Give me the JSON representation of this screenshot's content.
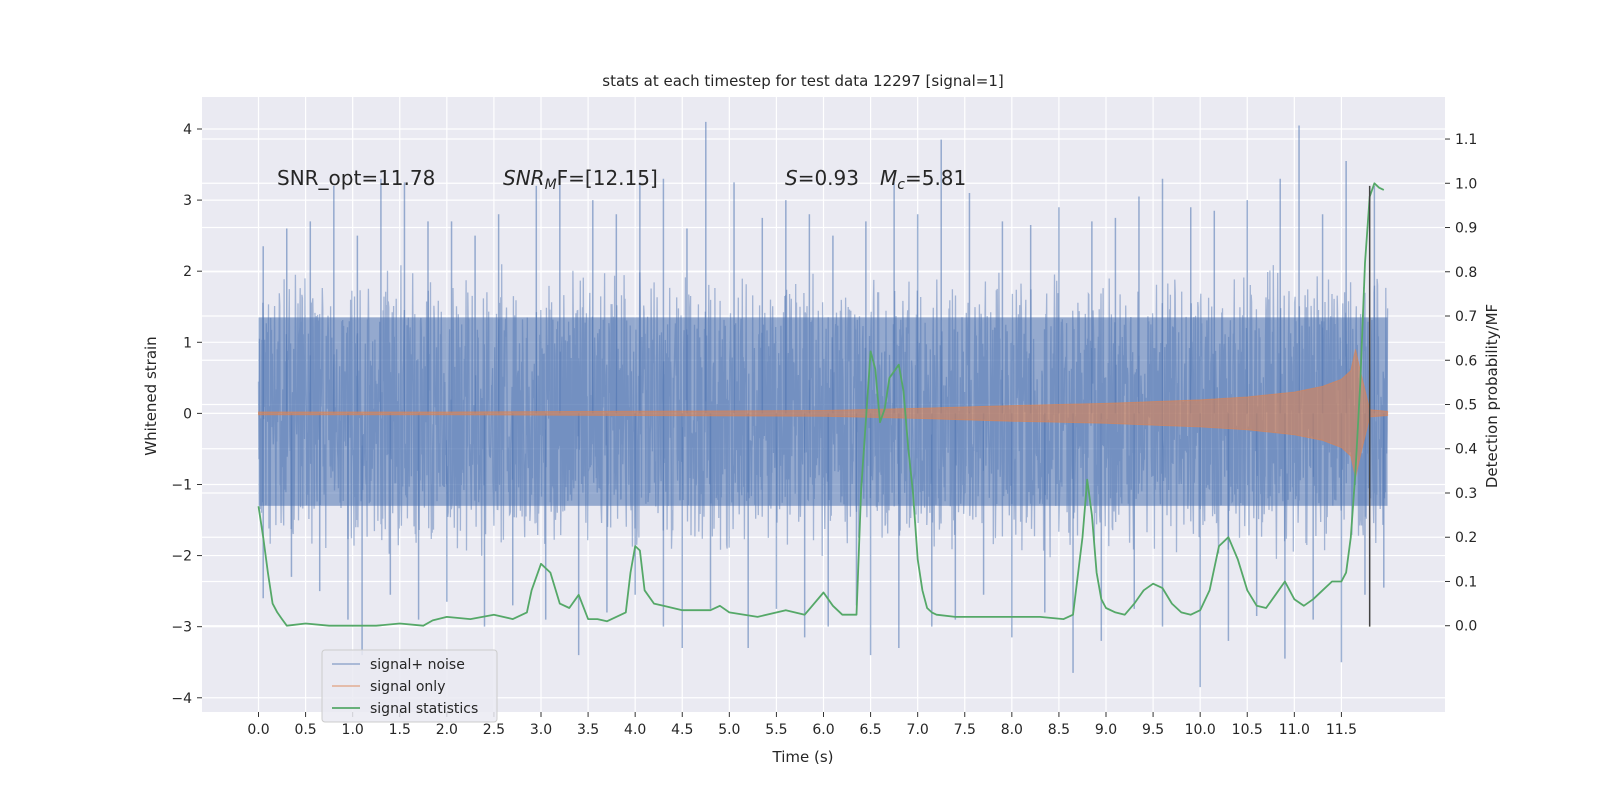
{
  "chart_data": {
    "type": "line",
    "title": "stats at each timestep for test data 12297 [signal=1]",
    "xlabel": "Time (s)",
    "ylabel_left": "Whitened strain",
    "ylabel_right": "Detection probability/MF",
    "xlim": [
      -0.6,
      12.6
    ],
    "ylim_left": [
      -4.2,
      4.45
    ],
    "ylim_right": [
      -0.195,
      1.195
    ],
    "x_ticks": [
      "0.0",
      "0.5",
      "1.0",
      "1.5",
      "2.0",
      "2.5",
      "3.0",
      "3.5",
      "4.0",
      "4.5",
      "5.0",
      "5.5",
      "6.0",
      "6.5",
      "7.0",
      "7.5",
      "8.0",
      "8.5",
      "9.0",
      "9.5",
      "10.0",
      "10.5",
      "11.0",
      "11.5"
    ],
    "y_left_ticks": [
      "4",
      "3",
      "2",
      "1",
      "0",
      "−1",
      "−2",
      "−3",
      "−4"
    ],
    "y_right_ticks": [
      "1.1",
      "1.0",
      "0.9",
      "0.8",
      "0.7",
      "0.6",
      "0.5",
      "0.4",
      "0.3",
      "0.2",
      "0.1",
      "0.0"
    ],
    "annotations": {
      "snr_opt": "SNR_opt=11.78",
      "snr_mf_sym": "SNR",
      "snr_mf_sub": "M",
      "snr_mf_rest": "F=[12.15]",
      "s_sym": "S",
      "s_rest": "=0.93",
      "mc_sym": "M",
      "mc_sub": "c",
      "mc_rest": "=5.81"
    },
    "series": [
      {
        "name": "signal+ noise",
        "color": "#4c72b0",
        "x_range": [
          0.0,
          11.99
        ],
        "band": [
          -1.3,
          1.35
        ],
        "spike_points": [
          [
            0.05,
            2.35
          ],
          [
            0.3,
            2.6
          ],
          [
            0.55,
            2.7
          ],
          [
            0.8,
            3.2
          ],
          [
            1.05,
            2.5
          ],
          [
            1.3,
            3.3
          ],
          [
            1.55,
            3.25
          ],
          [
            1.8,
            2.7
          ],
          [
            2.05,
            2.7
          ],
          [
            2.3,
            2.5
          ],
          [
            2.55,
            2.8
          ],
          [
            2.95,
            3.2
          ],
          [
            3.2,
            3.35
          ],
          [
            3.55,
            3.0
          ],
          [
            3.8,
            2.8
          ],
          [
            4.05,
            3.25
          ],
          [
            4.3,
            3.3
          ],
          [
            4.55,
            2.6
          ],
          [
            4.75,
            4.1
          ],
          [
            5.05,
            3.25
          ],
          [
            5.35,
            2.75
          ],
          [
            5.6,
            3.0
          ],
          [
            5.85,
            2.8
          ],
          [
            6.1,
            2.5
          ],
          [
            6.45,
            2.7
          ],
          [
            6.75,
            3.25
          ],
          [
            7.0,
            2.8
          ],
          [
            7.25,
            3.85
          ],
          [
            7.55,
            3.1
          ],
          [
            7.9,
            2.7
          ],
          [
            8.2,
            2.65
          ],
          [
            8.5,
            2.9
          ],
          [
            8.85,
            2.7
          ],
          [
            9.1,
            2.75
          ],
          [
            9.35,
            3.05
          ],
          [
            9.6,
            3.3
          ],
          [
            9.9,
            2.9
          ],
          [
            10.15,
            2.85
          ],
          [
            10.5,
            3.0
          ],
          [
            10.85,
            3.3
          ],
          [
            11.05,
            4.05
          ],
          [
            11.3,
            2.8
          ],
          [
            11.55,
            3.55
          ],
          [
            11.85,
            3.2
          ]
        ],
        "dip_points": [
          [
            0.05,
            -2.6
          ],
          [
            0.35,
            -2.3
          ],
          [
            0.65,
            -2.5
          ],
          [
            0.95,
            -2.9
          ],
          [
            1.1,
            -3.4
          ],
          [
            1.4,
            -2.55
          ],
          [
            1.7,
            -2.9
          ],
          [
            2.0,
            -2.65
          ],
          [
            2.4,
            -3.0
          ],
          [
            2.7,
            -2.7
          ],
          [
            3.05,
            -2.9
          ],
          [
            3.4,
            -3.4
          ],
          [
            3.7,
            -2.8
          ],
          [
            4.0,
            -2.55
          ],
          [
            4.3,
            -3.0
          ],
          [
            4.5,
            -3.3
          ],
          [
            4.8,
            -2.75
          ],
          [
            5.2,
            -3.3
          ],
          [
            5.5,
            -2.75
          ],
          [
            5.8,
            -3.15
          ],
          [
            6.05,
            -3.0
          ],
          [
            6.35,
            -2.7
          ],
          [
            6.5,
            -3.4
          ],
          [
            6.8,
            -3.3
          ],
          [
            7.15,
            -3.0
          ],
          [
            7.4,
            -2.9
          ],
          [
            7.7,
            -2.55
          ],
          [
            8.0,
            -3.15
          ],
          [
            8.35,
            -2.8
          ],
          [
            8.65,
            -3.65
          ],
          [
            8.95,
            -3.2
          ],
          [
            9.3,
            -2.75
          ],
          [
            9.6,
            -3.0
          ],
          [
            10.0,
            -3.85
          ],
          [
            10.3,
            -3.2
          ],
          [
            10.6,
            -2.85
          ],
          [
            10.9,
            -3.45
          ],
          [
            11.2,
            -2.9
          ],
          [
            11.5,
            -3.5
          ],
          [
            11.75,
            -2.55
          ],
          [
            11.95,
            -2.45
          ]
        ]
      },
      {
        "name": "signal only",
        "color": "#dd8452",
        "envelope_x": [
          0.0,
          2.0,
          4.0,
          6.0,
          7.0,
          8.0,
          9.0,
          10.0,
          10.5,
          11.0,
          11.3,
          11.5,
          11.6,
          11.65,
          11.7,
          11.8,
          11.99
        ],
        "envelope_y": [
          0.02,
          0.02,
          0.03,
          0.04,
          0.07,
          0.11,
          0.14,
          0.19,
          0.23,
          0.3,
          0.38,
          0.48,
          0.6,
          0.9,
          0.6,
          0.05,
          0.03
        ]
      },
      {
        "name": "signal statistics",
        "color": "#55a868",
        "x": [
          0.0,
          0.05,
          0.1,
          0.15,
          0.2,
          0.25,
          0.3,
          0.5,
          0.75,
          1.0,
          1.25,
          1.5,
          1.75,
          1.85,
          2.0,
          2.25,
          2.5,
          2.7,
          2.85,
          2.9,
          3.0,
          3.1,
          3.2,
          3.3,
          3.4,
          3.5,
          3.6,
          3.7,
          3.9,
          3.95,
          4.0,
          4.05,
          4.1,
          4.2,
          4.3,
          4.5,
          4.8,
          4.9,
          5.0,
          5.3,
          5.6,
          5.8,
          6.0,
          6.1,
          6.2,
          6.35,
          6.4,
          6.5,
          6.55,
          6.6,
          6.65,
          6.7,
          6.8,
          6.85,
          6.9,
          6.95,
          7.0,
          7.05,
          7.1,
          7.15,
          7.2,
          7.4,
          7.7,
          8.0,
          8.3,
          8.55,
          8.65,
          8.75,
          8.8,
          8.85,
          8.9,
          8.95,
          9.0,
          9.1,
          9.2,
          9.3,
          9.4,
          9.5,
          9.6,
          9.7,
          9.8,
          9.9,
          10.0,
          10.1,
          10.2,
          10.3,
          10.4,
          10.5,
          10.6,
          10.7,
          10.8,
          10.9,
          11.0,
          11.1,
          11.2,
          11.3,
          11.4,
          11.5,
          11.55,
          11.6,
          11.65,
          11.7,
          11.75,
          11.8,
          11.85,
          11.9,
          11.95
        ],
        "y": [
          0.27,
          0.2,
          0.12,
          0.05,
          0.03,
          0.015,
          0.0,
          0.005,
          0.0,
          0.0,
          0.0,
          0.005,
          0.0,
          0.012,
          0.02,
          0.015,
          0.025,
          0.015,
          0.03,
          0.08,
          0.14,
          0.12,
          0.05,
          0.04,
          0.07,
          0.015,
          0.015,
          0.01,
          0.03,
          0.12,
          0.18,
          0.17,
          0.08,
          0.05,
          0.045,
          0.035,
          0.035,
          0.045,
          0.03,
          0.02,
          0.035,
          0.025,
          0.075,
          0.045,
          0.025,
          0.025,
          0.31,
          0.62,
          0.58,
          0.46,
          0.49,
          0.56,
          0.59,
          0.53,
          0.4,
          0.3,
          0.15,
          0.08,
          0.04,
          0.03,
          0.025,
          0.02,
          0.02,
          0.02,
          0.02,
          0.015,
          0.025,
          0.2,
          0.33,
          0.25,
          0.12,
          0.06,
          0.04,
          0.03,
          0.025,
          0.05,
          0.08,
          0.095,
          0.085,
          0.05,
          0.03,
          0.025,
          0.035,
          0.08,
          0.18,
          0.2,
          0.15,
          0.08,
          0.045,
          0.04,
          0.07,
          0.1,
          0.06,
          0.045,
          0.06,
          0.08,
          0.1,
          0.1,
          0.12,
          0.2,
          0.35,
          0.55,
          0.82,
          0.97,
          1.0,
          0.99,
          0.985
        ]
      }
    ],
    "vline": {
      "x": 11.8,
      "y_left_range": [
        -3.0,
        3.2
      ],
      "color": "#424242"
    },
    "legend": {
      "placement": "lower-left",
      "entries": [
        "signal+ noise",
        "signal only",
        "signal statistics"
      ]
    },
    "grid": true
  }
}
